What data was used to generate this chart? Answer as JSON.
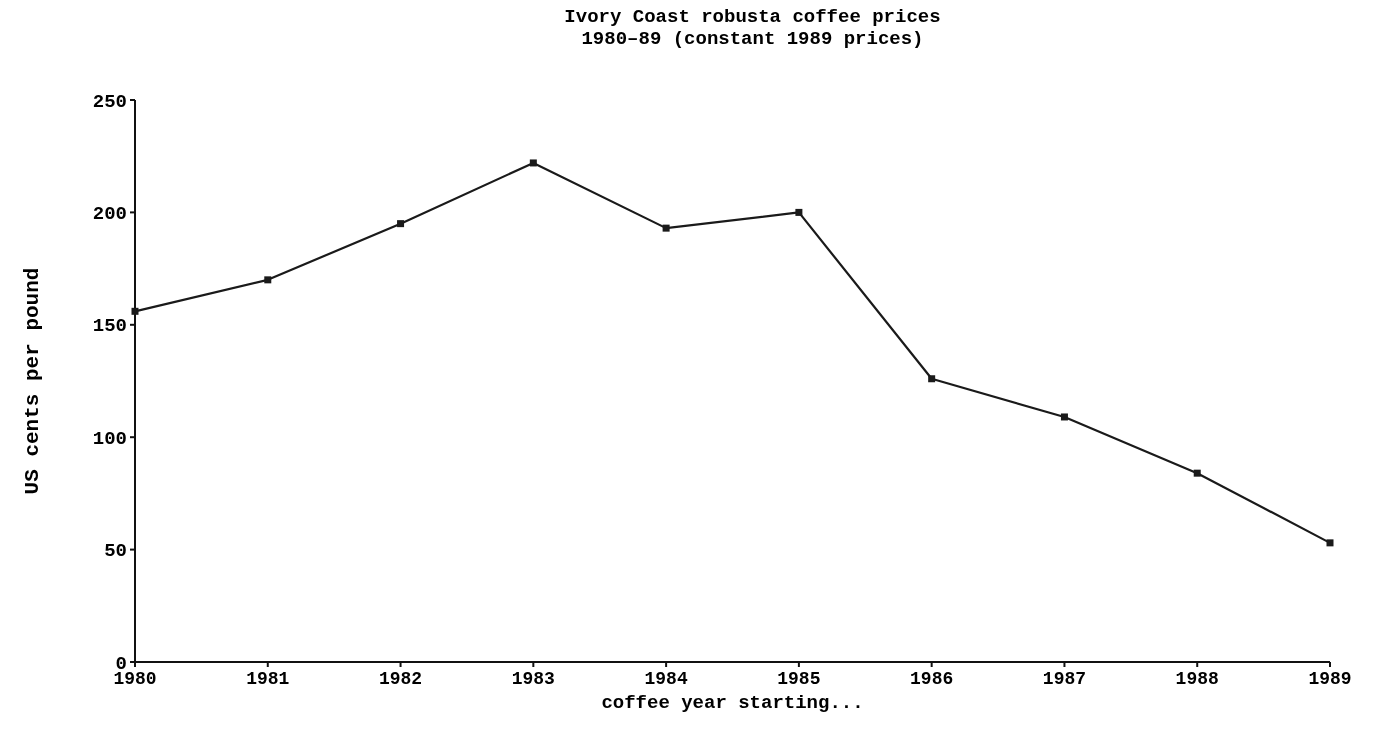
{
  "chart_data": {
    "type": "line",
    "title": "Ivory Coast robusta coffee prices",
    "subtitle": "1980–89 (constant 1989 prices)",
    "xlabel": "coffee year starting...",
    "ylabel": "US cents per pound",
    "x": [
      1980,
      1981,
      1982,
      1983,
      1984,
      1985,
      1986,
      1987,
      1988,
      1989
    ],
    "series": [
      {
        "color": "#1a1a1a",
        "values": [
          156,
          170,
          195,
          222,
          193,
          200,
          126,
          109,
          84,
          53
        ]
      }
    ],
    "xlim": [
      1980,
      1989
    ],
    "xticks": [
      1980,
      1981,
      1982,
      1983,
      1984,
      1985,
      1986,
      1987,
      1988,
      1989
    ],
    "ylim": [
      0,
      250
    ],
    "yticks": [
      0,
      50,
      100,
      150,
      200,
      250
    ],
    "marker": "square",
    "line_style": "solid",
    "grid": false
  }
}
